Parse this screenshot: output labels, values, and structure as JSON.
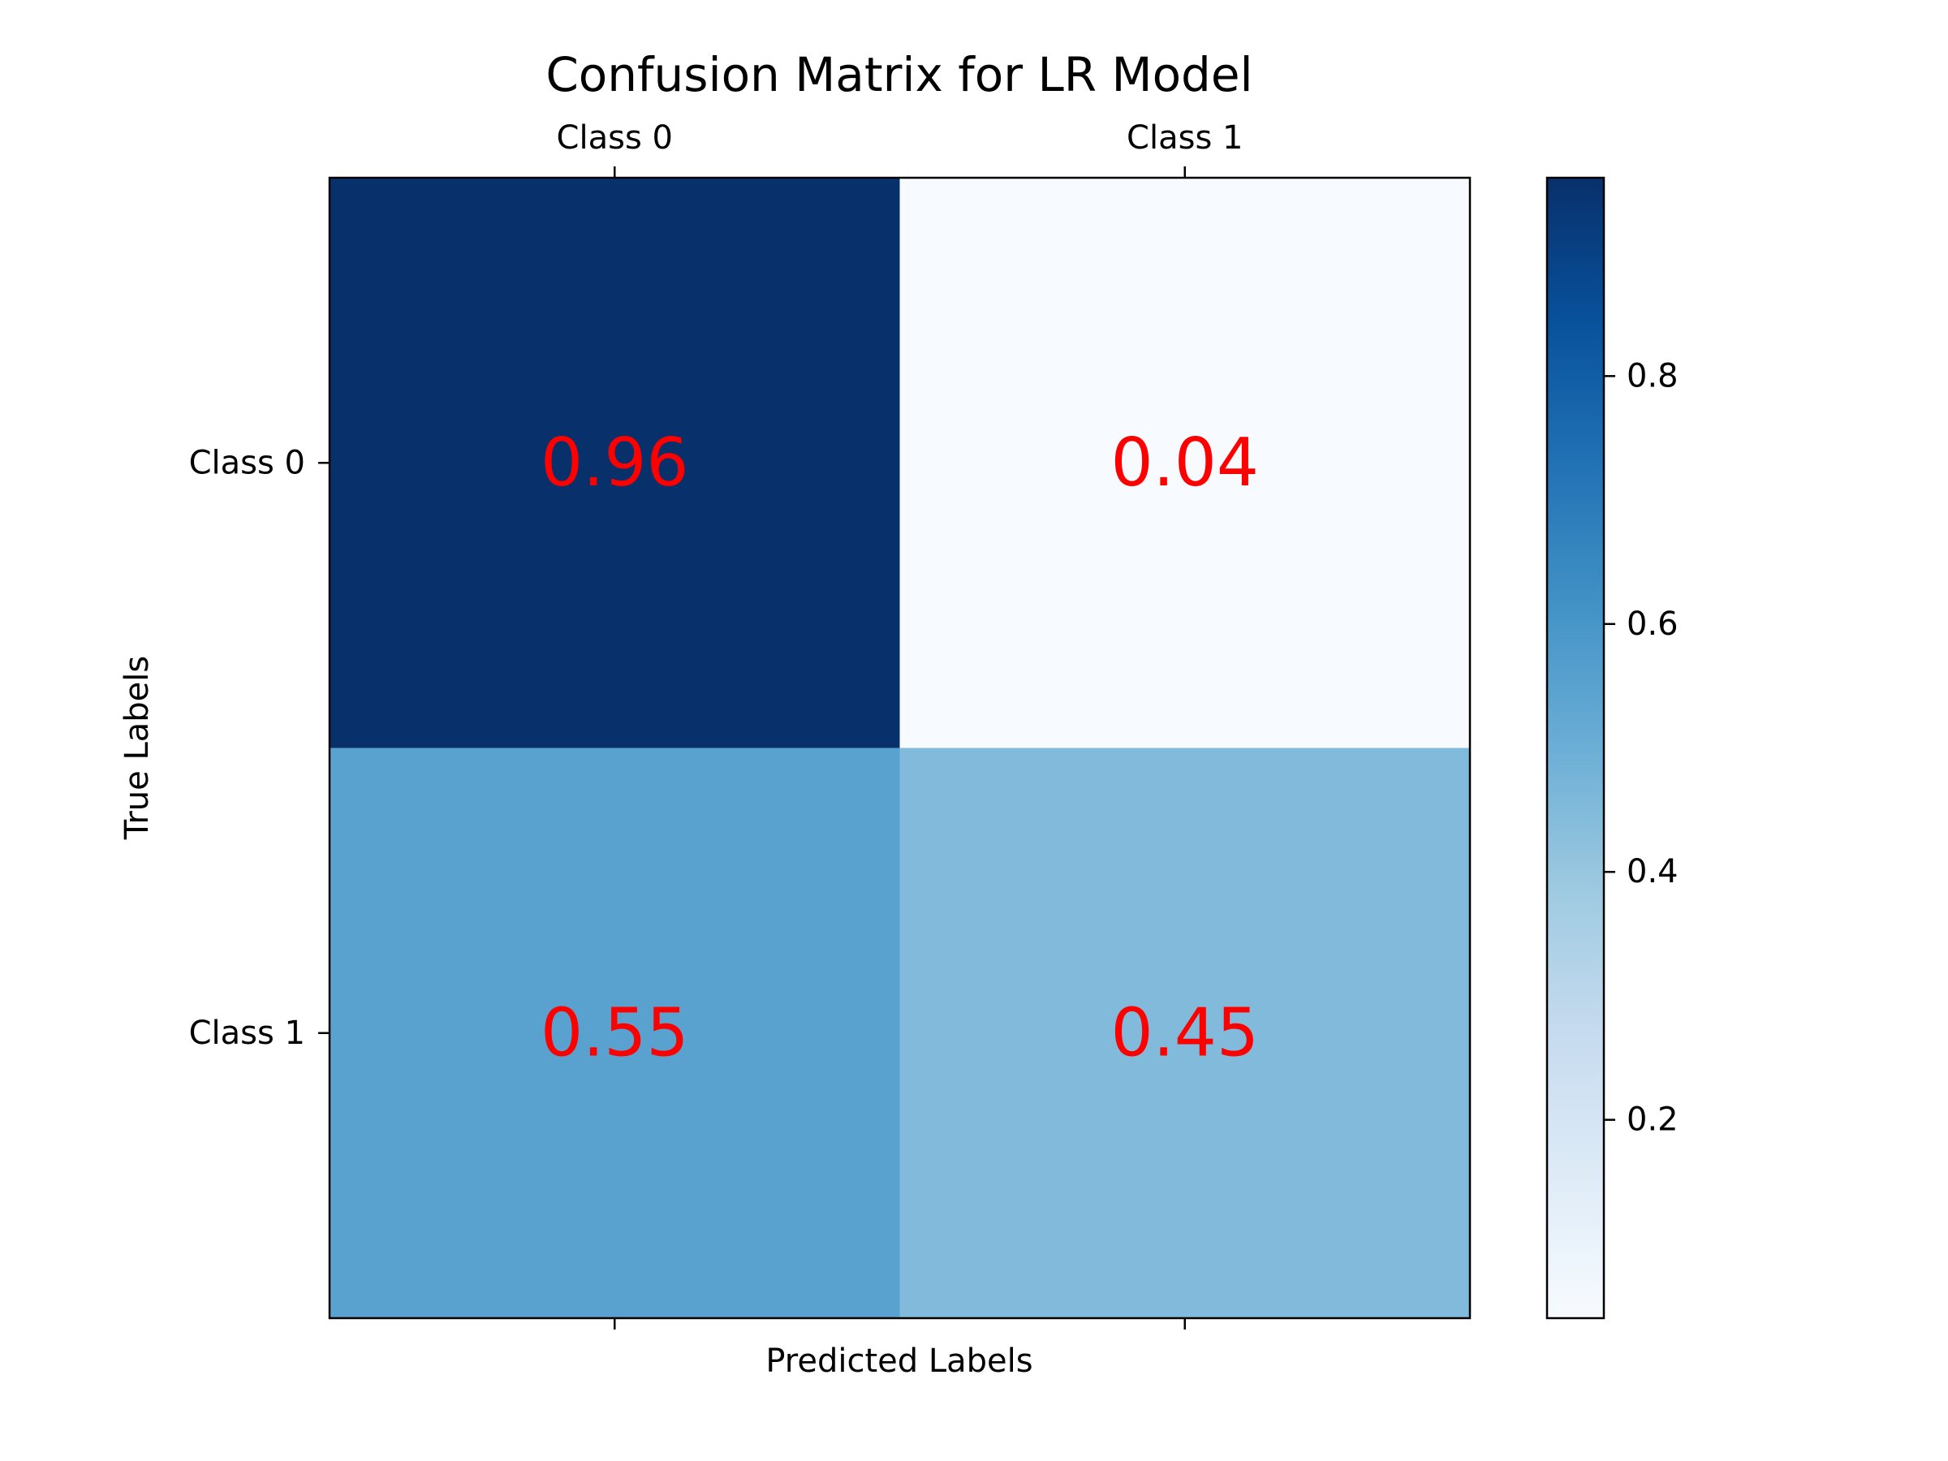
{
  "chart_data": {
    "type": "heatmap",
    "title": "Confusion Matrix for LR Model",
    "xlabel": "Predicted Labels",
    "ylabel": "True Labels",
    "x_categories": [
      "Class 0",
      "Class 1"
    ],
    "y_categories": [
      "Class 0",
      "Class 1"
    ],
    "x_tick_position": "top",
    "values": [
      [
        0.96,
        0.04
      ],
      [
        0.55,
        0.45
      ]
    ],
    "value_labels": [
      [
        "0.96",
        "0.04"
      ],
      [
        "0.55",
        "0.45"
      ]
    ],
    "value_label_color": "#ff0000",
    "colormap": "Blues",
    "colorbar": {
      "min": 0.04,
      "max": 0.96,
      "ticks": [
        0.2,
        0.4,
        0.6,
        0.8
      ],
      "tick_labels": [
        "0.2",
        "0.4",
        "0.6",
        "0.8"
      ]
    },
    "grid": false
  }
}
